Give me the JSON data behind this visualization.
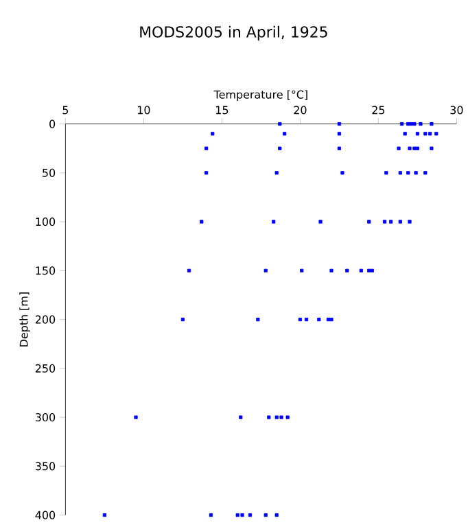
{
  "chart_data": {
    "type": "scatter",
    "title": "MODS2005 in April, 1925",
    "xlabel": "Temperature [°C]",
    "ylabel": "Depth [m]",
    "series": [
      {
        "color": "#0000ff",
        "x": [
          18.7,
          22.5,
          26.5,
          26.9,
          27.1,
          27.3,
          27.7,
          28.4,
          14.4,
          19.0,
          22.5,
          26.7,
          27.5,
          28.0,
          28.3,
          28.7,
          14.0,
          18.7,
          22.5,
          26.3,
          27.0,
          27.3,
          27.5,
          28.4,
          14.0,
          18.5,
          22.7,
          25.5,
          26.4,
          26.9,
          27.4,
          28.0,
          13.7,
          18.3,
          21.3,
          24.4,
          25.4,
          25.8,
          26.4,
          27.0,
          12.9,
          17.8,
          20.1,
          22.0,
          23.0,
          23.9,
          24.4,
          24.6,
          12.5,
          17.3,
          20.0,
          20.4,
          21.2,
          21.8,
          22.0,
          9.5,
          16.2,
          18.0,
          18.5,
          18.8,
          19.2,
          7.5,
          14.3,
          16.0,
          16.3,
          16.8,
          17.8,
          18.5
        ],
        "values": [
          0,
          0,
          0,
          0,
          0,
          0,
          0,
          0,
          10,
          10,
          10,
          10,
          10,
          10,
          10,
          10,
          25,
          25,
          25,
          25,
          25,
          25,
          25,
          25,
          50,
          50,
          50,
          50,
          50,
          50,
          50,
          50,
          100,
          100,
          100,
          100,
          100,
          100,
          100,
          100,
          150,
          150,
          150,
          150,
          150,
          150,
          150,
          150,
          200,
          200,
          200,
          200,
          200,
          200,
          200,
          300,
          300,
          300,
          300,
          300,
          300,
          400,
          400,
          400,
          400,
          400,
          400,
          400
        ]
      }
    ],
    "xlim": [
      5,
      30
    ],
    "xticks": [
      5,
      10,
      15,
      20,
      25,
      30
    ],
    "ylim": [
      400,
      0
    ],
    "yticks": [
      0,
      50,
      100,
      150,
      200,
      250,
      300,
      350,
      400
    ],
    "marker": "square",
    "grid": false
  }
}
